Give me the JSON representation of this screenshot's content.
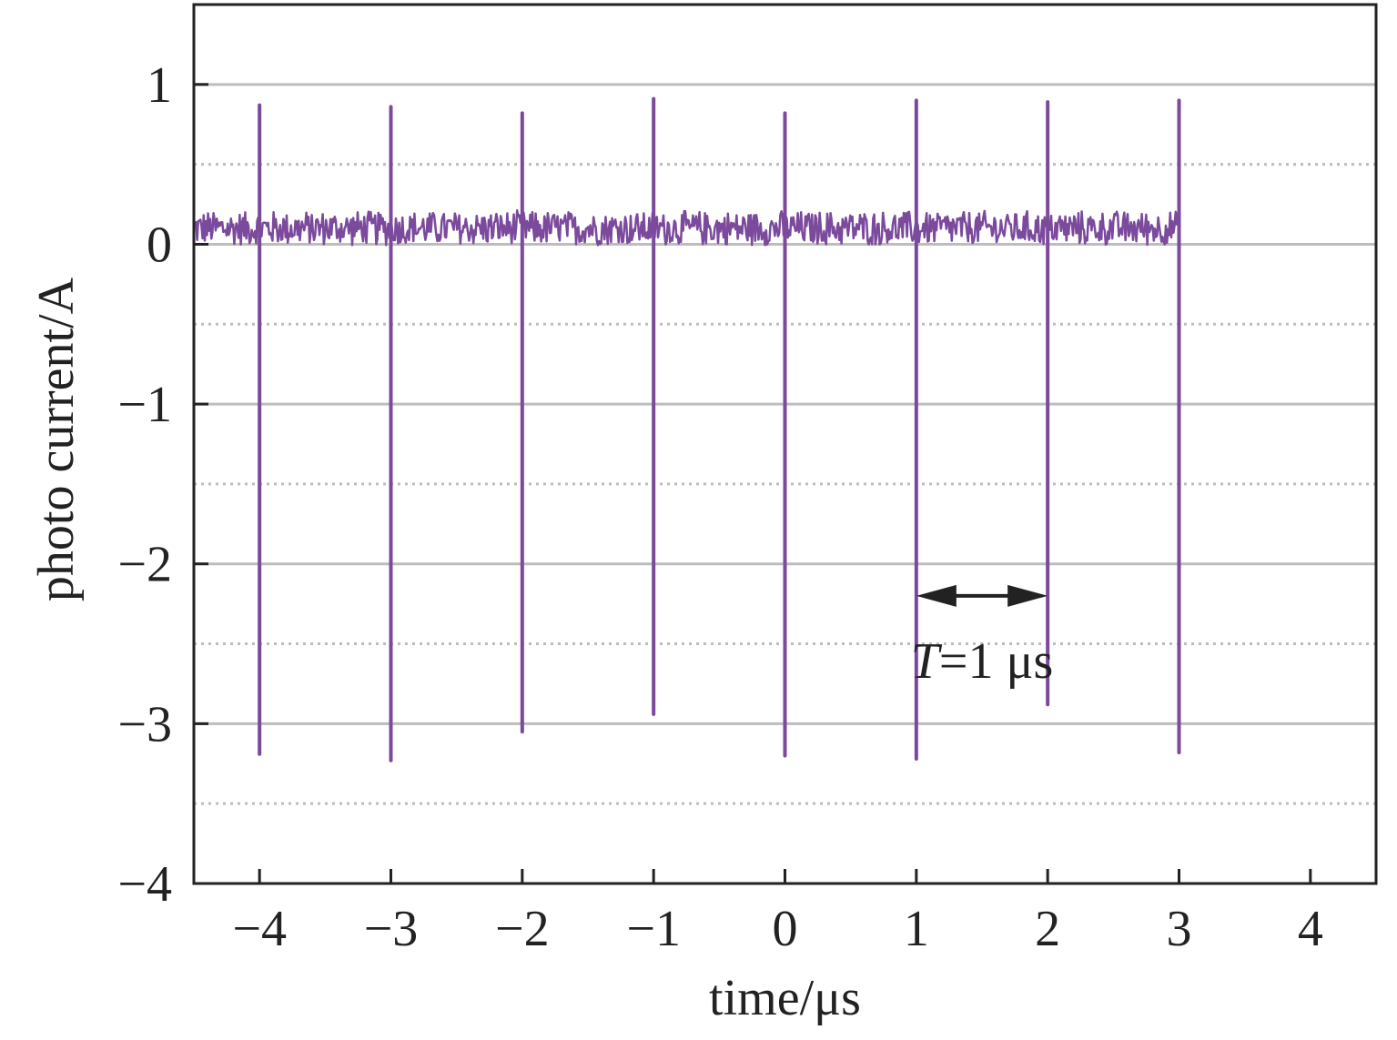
{
  "chart_data": {
    "type": "line",
    "title": "",
    "xlabel": "time/μs",
    "ylabel": "photo current/A",
    "xlim": [
      -4.5,
      4.5
    ],
    "ylim": [
      -4,
      1.5
    ],
    "x_ticks": [
      -4,
      -3,
      -2,
      -1,
      0,
      1,
      2,
      3,
      4
    ],
    "x_tick_labels": [
      "−4",
      "−3",
      "−2",
      "−1",
      "0",
      "1",
      "2",
      "3",
      "4"
    ],
    "y_ticks": [
      -4,
      -3,
      -2,
      -1,
      0,
      1
    ],
    "y_tick_labels": [
      "−4",
      "−3",
      "−2",
      "−1",
      "0",
      "1"
    ],
    "grid": {
      "major_y": [
        -3,
        -2,
        -1,
        0,
        1
      ],
      "minor_y_dotted": [
        -3.5,
        -2.5,
        -1.5,
        -0.5,
        0.5
      ]
    },
    "series": [
      {
        "color": "#7b4a9c",
        "baseline": {
          "x_start": -4.5,
          "x_end": 3.0,
          "mean": 0.1,
          "band_low": -0.03,
          "band_high": 0.2
        },
        "pulses": [
          {
            "x": -4,
            "peak": 0.87,
            "trough": -3.19
          },
          {
            "x": -3,
            "peak": 0.86,
            "trough": -3.23
          },
          {
            "x": -2,
            "peak": 0.82,
            "trough": -3.05
          },
          {
            "x": -1,
            "peak": 0.91,
            "trough": -2.94
          },
          {
            "x": 0,
            "peak": 0.82,
            "trough": -3.2
          },
          {
            "x": 1,
            "peak": 0.9,
            "trough": -3.22
          },
          {
            "x": 2,
            "peak": 0.89,
            "trough": -2.88
          },
          {
            "x": 3,
            "peak": 0.9,
            "trough": -3.18
          }
        ]
      }
    ],
    "annotation": {
      "arrow_from_x": 1,
      "arrow_to_x": 2,
      "arrow_y": -2.2,
      "label_italic": "T",
      "label_rest": "=1 μs",
      "label_x": 1.5,
      "label_y": -2.6
    }
  }
}
